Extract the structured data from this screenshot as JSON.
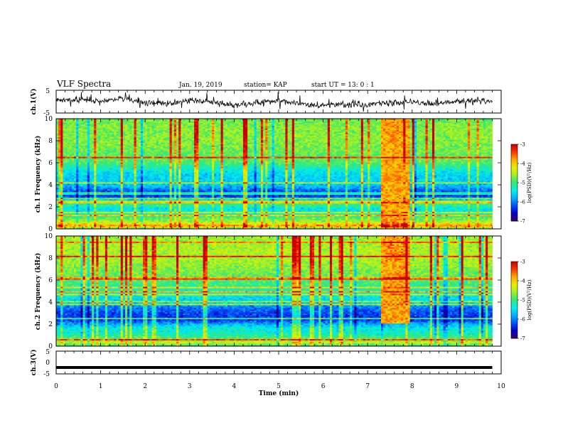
{
  "header": {
    "title": "VLF Spectra",
    "date": "Jan. 19, 2019",
    "station": "station= KAP",
    "start": "start  UT =   13: 0  : 1"
  },
  "colors": {
    "colormap": [
      "#3a0066",
      "#0000c8",
      "#0050ff",
      "#00b4ff",
      "#00f0e6",
      "#32e678",
      "#a0f028",
      "#e6f000",
      "#ffaa00",
      "#ff3200",
      "#c80000"
    ]
  },
  "chart_data": [
    {
      "type": "line",
      "panel": "ch1-waveform",
      "ylabel": "ch.1(V)",
      "ylim": [
        -5,
        5
      ],
      "yticks": [
        "5",
        "-5"
      ],
      "xlim": [
        0,
        10
      ],
      "x": [
        0.0,
        0.5,
        1.0,
        1.5,
        2.0,
        2.5,
        3.0,
        3.5,
        4.0,
        4.5,
        5.0,
        5.5,
        6.0,
        6.5,
        7.0,
        7.5,
        8.0,
        8.5,
        9.0,
        9.5,
        9.8
      ],
      "values": [
        0.5,
        1.0,
        0.0,
        1.5,
        -0.5,
        -1.0,
        0.5,
        0.0,
        -1.5,
        -0.5,
        0.5,
        -1.0,
        -1.5,
        -1.0,
        -1.5,
        -0.5,
        0.0,
        -1.0,
        0.0,
        0.5,
        -0.5
      ],
      "noise_amplitude": 2.2
    },
    {
      "type": "heatmap",
      "panel": "ch1-spectrogram",
      "ylabel": "ch.1 Frequency (kHz)",
      "ylim": [
        0,
        10
      ],
      "yticks": [
        "0",
        "2",
        "4",
        "6",
        "8",
        "10"
      ],
      "xlim": [
        0,
        10
      ],
      "data_end_min": 9.8,
      "burst_min": [
        7.3,
        7.95
      ],
      "burst_freq_khz": [
        0,
        10
      ],
      "profile": [
        {
          "f": 0.0,
          "v": -5.0
        },
        {
          "f": 0.25,
          "v": -3.6
        },
        {
          "f": 0.6,
          "v": -4.5
        },
        {
          "f": 1.0,
          "v": -4.9
        },
        {
          "f": 1.4,
          "v": -5.3
        },
        {
          "f": 1.8,
          "v": -5.5
        },
        {
          "f": 2.2,
          "v": -5.0
        },
        {
          "f": 2.6,
          "v": -5.6
        },
        {
          "f": 3.0,
          "v": -6.4
        },
        {
          "f": 3.4,
          "v": -6.2
        },
        {
          "f": 3.8,
          "v": -5.8
        },
        {
          "f": 4.2,
          "v": -5.6
        },
        {
          "f": 4.8,
          "v": -5.6
        },
        {
          "f": 5.3,
          "v": -5.4
        },
        {
          "f": 6.0,
          "v": -4.9
        },
        {
          "f": 7.0,
          "v": -4.8
        },
        {
          "f": 8.0,
          "v": -4.7
        },
        {
          "f": 9.0,
          "v": -4.7
        },
        {
          "f": 10.0,
          "v": -4.8
        }
      ],
      "colorbar": {
        "label": "log(PSD)(V²/Hz)",
        "range": [
          -7,
          -3
        ],
        "ticks": [
          "-3",
          "-4",
          "-5",
          "-6",
          "-7"
        ]
      }
    },
    {
      "type": "heatmap",
      "panel": "ch2-spectrogram",
      "ylabel": "ch.2 Frequency (kHz)",
      "ylim": [
        0,
        10
      ],
      "yticks": [
        "0",
        "2",
        "4",
        "6",
        "8",
        "10"
      ],
      "xlim": [
        0,
        10
      ],
      "data_end_min": 9.8,
      "burst_min": [
        7.3,
        7.95
      ],
      "burst_freq_khz": [
        2,
        10
      ],
      "profile": [
        {
          "f": 0.0,
          "v": -5.2
        },
        {
          "f": 0.3,
          "v": -4.4
        },
        {
          "f": 0.8,
          "v": -5.0
        },
        {
          "f": 1.2,
          "v": -5.3
        },
        {
          "f": 1.6,
          "v": -5.4
        },
        {
          "f": 2.0,
          "v": -5.8
        },
        {
          "f": 2.4,
          "v": -6.4
        },
        {
          "f": 2.9,
          "v": -6.3
        },
        {
          "f": 3.4,
          "v": -6.1
        },
        {
          "f": 3.9,
          "v": -5.7
        },
        {
          "f": 4.4,
          "v": -5.5
        },
        {
          "f": 5.0,
          "v": -5.3
        },
        {
          "f": 5.6,
          "v": -5.0
        },
        {
          "f": 6.5,
          "v": -4.8
        },
        {
          "f": 7.5,
          "v": -4.6
        },
        {
          "f": 8.5,
          "v": -4.5
        },
        {
          "f": 10.0,
          "v": -4.6
        }
      ],
      "colorbar": {
        "label": "log(PSD)(V²/Hz)",
        "range": [
          -7,
          -3
        ],
        "ticks": [
          "-3",
          "-4",
          "-5",
          "-6",
          "-7"
        ]
      }
    },
    {
      "type": "line",
      "panel": "ch3-waveform",
      "ylabel": "ch.3(V)",
      "ylim": [
        -5,
        5
      ],
      "yticks": [
        "5",
        "0",
        "-5"
      ],
      "xlim": [
        0,
        10
      ],
      "x": [
        0.0,
        9.8
      ],
      "values": [
        -2.2,
        -2.2
      ]
    }
  ],
  "xaxis": {
    "label": "Time  (min)",
    "ticks": [
      "0",
      "1",
      "2",
      "3",
      "4",
      "5",
      "6",
      "7",
      "8",
      "9",
      "10"
    ]
  }
}
